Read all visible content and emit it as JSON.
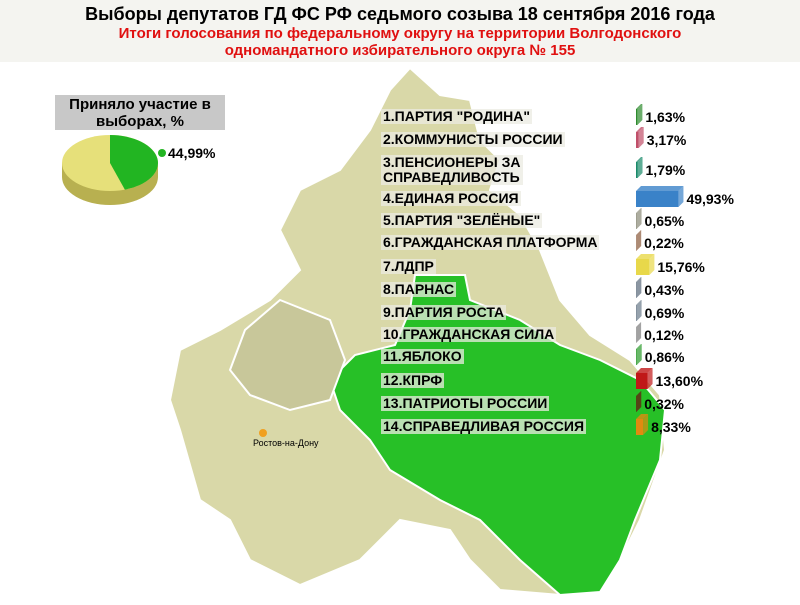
{
  "title": "Выборы депутатов ГД ФС РФ седьмого созыва 18 сентября 2016 года",
  "subtitle": "Итоги голосования по федеральному округу на территории Волгодонского\nодномандатного избирательного округа № 155",
  "map_label": "Ростов-на-Дону",
  "chart_data": [
    {
      "type": "pie",
      "title": "Приняло участие в\nвыборах, %",
      "values": [
        44.99
      ],
      "value_labels": [
        "44,99%"
      ],
      "color": "#22b522",
      "rest_color": "#e6e07a"
    },
    {
      "type": "bar",
      "orientation": "horizontal",
      "categories": [
        "1.ПАРТИЯ \"РОДИНА\"",
        "2.КОММУНИСТЫ РОССИИ",
        "3.ПЕНСИОНЕРЫ ЗА\nСПРАВЕДЛИВОСТЬ",
        "4.ЕДИНАЯ РОССИЯ",
        "5.ПАРТИЯ \"ЗЕЛЁНЫЕ\"",
        "6.ГРАЖДАНСКАЯ ПЛАТФОРМА",
        "7.ЛДПР",
        "8.ПАРНАС",
        "9.ПАРТИЯ РОСТА",
        "10.ГРАЖДАНСКАЯ СИЛА",
        "11.ЯБЛОКО",
        "12.КПРФ",
        "13.ПАТРИОТЫ РОССИИ",
        "14.СПРАВЕДЛИВАЯ РОССИЯ"
      ],
      "values": [
        1.63,
        3.17,
        1.79,
        49.93,
        0.65,
        0.22,
        15.76,
        0.43,
        0.69,
        0.12,
        0.86,
        13.6,
        0.32,
        8.33
      ],
      "value_labels": [
        "1,63%",
        "3,17%",
        "1,79%",
        "49,93%",
        "0,65%",
        "0,22%",
        "15,76%",
        "0,43%",
        "0,69%",
        "0,12%",
        "0,86%",
        "13,60%",
        "0,32%",
        "8,33%"
      ],
      "colors": [
        "#2e8b2e",
        "#c0506a",
        "#1a8a6a",
        "#3a82c8",
        "#8a8a78",
        "#8a5a3a",
        "#e8d84a",
        "#5a6a7a",
        "#6a7a8a",
        "#7a7a7a",
        "#2a9a2a",
        "#c01818",
        "#6a1010",
        "#e08a10"
      ]
    }
  ]
}
